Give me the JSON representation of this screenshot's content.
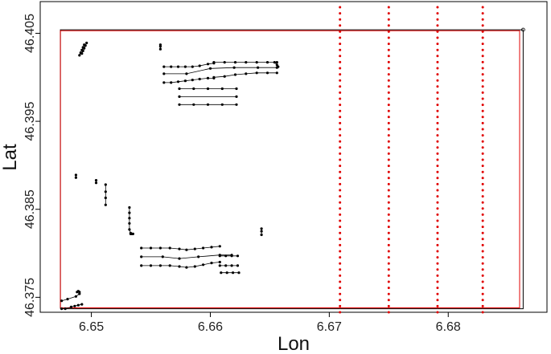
{
  "chart_data": {
    "type": "scatter",
    "title": "",
    "xlabel": "Lon",
    "ylabel": "Lat",
    "xlim": [
      6.6457,
      6.6883
    ],
    "ylim": [
      46.3733,
      46.4086
    ],
    "x_ticks": [
      6.65,
      6.66,
      6.67,
      6.68
    ],
    "x_tick_labels": [
      "6.65",
      "6.66",
      "6.67",
      "6.68"
    ],
    "y_ticks": [
      46.375,
      46.385,
      46.395,
      46.405
    ],
    "y_tick_labels": [
      "46.375",
      "46.385",
      "46.395",
      "46.405"
    ],
    "grid": false,
    "legend": "none",
    "colors": {
      "outline": "#000000",
      "red_outline": "#e00000",
      "red_dots": "#e00000",
      "points": "#000000"
    },
    "boundary_black": {
      "x": [
        6.6474,
        6.6863,
        6.6863,
        6.6474,
        6.6474
      ],
      "y": [
        46.3737,
        46.3737,
        46.4054,
        46.4054,
        46.3737
      ]
    },
    "boundary_red": {
      "x": [
        6.6474,
        6.686,
        6.686,
        6.6474,
        6.6474
      ],
      "y": [
        46.3738,
        46.3738,
        46.4053,
        46.4053,
        46.3738
      ]
    },
    "red_dotted_lines": [
      {
        "x": 6.6709,
        "ymin": 46.3733,
        "ymax": 46.4086
      },
      {
        "x": 6.675,
        "ymin": 46.3733,
        "ymax": 46.4086
      },
      {
        "x": 6.6791,
        "ymin": 46.3733,
        "ymax": 46.4086
      },
      {
        "x": 6.6829,
        "ymin": 46.3733,
        "ymax": 46.4086
      }
    ],
    "series": [
      {
        "x": [
          6.649,
          6.6491,
          6.6492,
          6.6493,
          6.6494
        ],
        "y": [
          46.4025,
          46.4028,
          46.4031,
          46.4034,
          46.4037
        ]
      },
      {
        "x": [
          6.6492,
          6.6493,
          6.6494,
          6.6495,
          6.6496
        ],
        "y": [
          46.4027,
          46.403,
          46.4033,
          46.4036,
          46.4039
        ]
      },
      {
        "x": [
          6.6558,
          6.6558,
          6.6558
        ],
        "y": [
          46.4037,
          46.4035,
          46.4032
        ]
      },
      {
        "x": [
          6.6561,
          6.6567,
          6.6573,
          6.6579,
          6.6585,
          6.6591,
          6.6598,
          6.6603
        ],
        "y": [
          46.4012,
          46.4012,
          46.4012,
          46.4012,
          46.4012,
          46.4013,
          46.4015,
          46.4016
        ]
      },
      {
        "x": [
          6.6603,
          6.6612,
          6.6621,
          6.663,
          6.6639,
          6.6648,
          6.6656
        ],
        "y": [
          46.4017,
          46.4017,
          46.4017,
          46.4017,
          46.4017,
          46.4017,
          46.4017
        ]
      },
      {
        "x": [
          6.6561,
          6.658,
          6.66,
          6.662,
          6.664,
          6.6656
        ],
        "y": [
          46.4004,
          46.4004,
          46.401,
          46.4011,
          46.4011,
          46.4011
        ]
      },
      {
        "x": [
          6.6561,
          6.6567,
          6.6573,
          6.6579,
          6.6585,
          6.6591,
          6.6598,
          6.6603
        ],
        "y": [
          46.3994,
          46.3994,
          46.3995,
          46.3996,
          46.3997,
          46.3998,
          46.3999,
          46.3999
        ]
      },
      {
        "x": [
          6.6603,
          6.6612,
          6.6621,
          6.663,
          6.6639,
          6.6648,
          6.6656
        ],
        "y": [
          46.4,
          46.4001,
          46.4003,
          46.4004,
          46.4005,
          46.4005,
          46.4005
        ]
      },
      {
        "x": [
          6.6654,
          6.6656,
          6.6657
        ],
        "y": [
          46.4017,
          46.4014,
          46.4012
        ]
      },
      {
        "x": [
          6.6574,
          6.6586,
          6.6598,
          6.661,
          6.6622
        ],
        "y": [
          46.3987,
          46.3987,
          46.3987,
          46.3987,
          46.3987
        ]
      },
      {
        "x": [
          6.6574,
          6.6622
        ],
        "y": [
          46.3978,
          46.3978
        ]
      },
      {
        "x": [
          6.6574,
          6.6586,
          6.6598,
          6.661,
          6.6622
        ],
        "y": [
          46.3969,
          46.3969,
          46.3969,
          46.3969,
          46.3969
        ]
      },
      {
        "x": [
          6.6487,
          6.6487
        ],
        "y": [
          46.3889,
          46.3886
        ]
      },
      {
        "x": [
          6.6504,
          6.6504
        ],
        "y": [
          46.3883,
          46.388
        ]
      },
      {
        "x": [
          6.6512,
          6.6512,
          6.6512,
          6.6512
        ],
        "y": [
          46.3878,
          46.387,
          46.3863,
          46.3855
        ]
      },
      {
        "x": [
          6.6532,
          6.6532,
          6.6532,
          6.6532,
          6.6532,
          6.6533
        ],
        "y": [
          46.3852,
          46.3846,
          46.384,
          46.3834,
          46.3827,
          46.3823
        ]
      },
      {
        "x": [
          6.6533,
          6.6534,
          6.6535
        ],
        "y": [
          46.3822,
          46.3822,
          46.3822
        ]
      },
      {
        "x": [
          6.6643,
          6.6643,
          6.6643
        ],
        "y": [
          46.3828,
          46.3825,
          46.3821
        ]
      },
      {
        "x": [
          6.6542,
          6.655,
          6.6558,
          6.6566,
          6.6574,
          6.658,
          6.6587,
          6.6594,
          6.6601,
          6.6608
        ],
        "y": [
          46.3806,
          46.3806,
          46.3806,
          46.3806,
          46.3805,
          46.3804,
          46.3805,
          46.3806,
          46.3807,
          46.3808
        ]
      },
      {
        "x": [
          6.6542,
          6.656,
          6.6574,
          6.659,
          6.6608,
          6.6618
        ],
        "y": [
          46.3796,
          46.3796,
          46.3794,
          46.3796,
          46.3798,
          46.3798
        ]
      },
      {
        "x": [
          6.6542,
          6.655,
          6.6558,
          6.6566,
          6.6574,
          6.658,
          6.6587,
          6.6594,
          6.6601,
          6.6608
        ],
        "y": [
          46.3786,
          46.3786,
          46.3786,
          46.3786,
          46.3785,
          46.3784,
          46.3785,
          46.3787,
          46.3789,
          46.379
        ]
      },
      {
        "x": [
          6.6608,
          6.6613,
          6.6618,
          6.6623
        ],
        "y": [
          46.3797,
          46.3797,
          46.3797,
          46.3797
        ]
      },
      {
        "x": [
          6.6608,
          6.6613,
          6.6618,
          6.6623
        ],
        "y": [
          46.3786,
          46.3786,
          46.3786,
          46.3786
        ]
      },
      {
        "x": [
          6.6609,
          6.6614,
          6.6619,
          6.6624
        ],
        "y": [
          46.3778,
          46.3778,
          46.3778,
          46.3778
        ]
      },
      {
        "x": [
          6.6475,
          6.648,
          6.6487,
          6.649
        ],
        "y": [
          46.3746,
          46.3748,
          46.3751,
          46.3754
        ]
      },
      {
        "x": [
          6.6488,
          6.6489,
          6.649
        ],
        "y": [
          46.3756,
          46.3757,
          46.3756
        ]
      },
      {
        "x": [
          6.6475,
          6.6478,
          6.6483,
          6.6486,
          6.6489,
          6.6492
        ],
        "y": [
          46.3737,
          46.3737,
          46.3739,
          46.374,
          46.3741,
          46.3742
        ]
      }
    ]
  }
}
